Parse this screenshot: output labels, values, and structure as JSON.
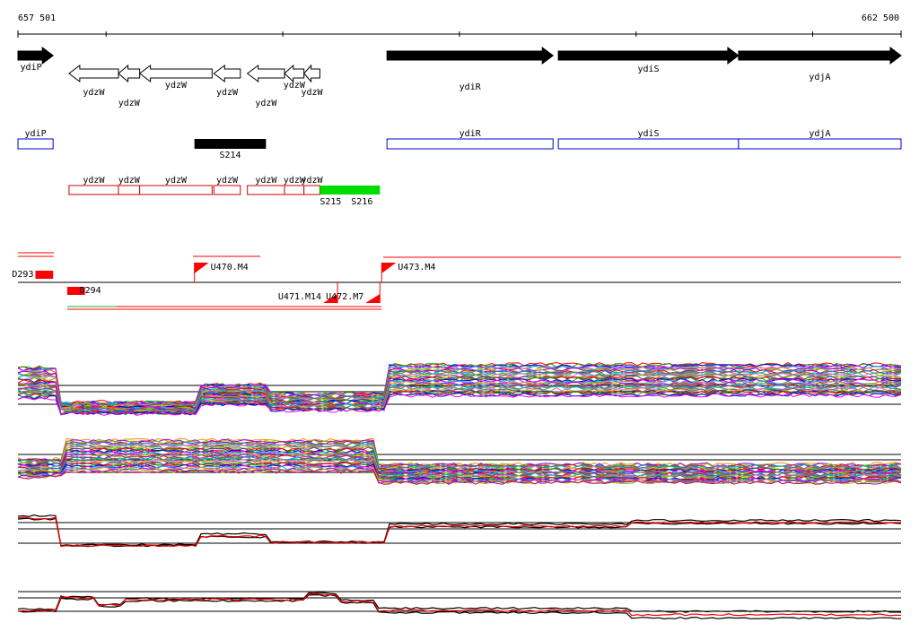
{
  "coordinates": {
    "start_label": "657 501",
    "end_label": "662 500",
    "start": 657501,
    "end": 662500,
    "ticks": [
      658000,
      659000,
      660000,
      661000,
      662000
    ]
  },
  "colors": {
    "gene_fill": "#000000",
    "gene_outline": "#000000",
    "operon_blue": "#0000cc",
    "operon_red": "#cc0000",
    "srna_black": "#000000",
    "srna_green": "#00dd00",
    "tss_red": "#ff0000",
    "baseline": "#000000"
  },
  "genes": [
    {
      "name": "ydiP",
      "start": 657501,
      "end": 657700,
      "strand": "+",
      "filled": true
    },
    {
      "name": "ydzW",
      "start": 657790,
      "end": 658070,
      "strand": "-",
      "filled": false
    },
    {
      "name": "ydzW",
      "start": 658070,
      "end": 658190,
      "strand": "-",
      "filled": false
    },
    {
      "name": "ydzW",
      "start": 658190,
      "end": 658600,
      "strand": "-",
      "filled": false
    },
    {
      "name": "ydzW",
      "start": 658610,
      "end": 658760,
      "strand": "-",
      "filled": false
    },
    {
      "name": "ydzW",
      "start": 658800,
      "end": 659010,
      "strand": "-",
      "filled": false
    },
    {
      "name": "ydzW",
      "start": 659010,
      "end": 659120,
      "strand": "-",
      "filled": false
    },
    {
      "name": "ydzW",
      "start": 659120,
      "end": 659210,
      "strand": "-",
      "filled": false
    },
    {
      "name": "ydiR",
      "start": 659590,
      "end": 660530,
      "strand": "+",
      "filled": true
    },
    {
      "name": "ydiS",
      "start": 660560,
      "end": 661580,
      "strand": "+",
      "filled": true
    },
    {
      "name": "ydjA",
      "start": 661580,
      "end": 662500,
      "strand": "+",
      "filled": true
    }
  ],
  "operons_blue": [
    {
      "name": "ydiP",
      "start": 657501,
      "end": 657700
    },
    {
      "name": "ydiR",
      "start": 659590,
      "end": 660530
    },
    {
      "name": "ydiS",
      "start": 660560,
      "end": 661580
    },
    {
      "name": "ydjA",
      "start": 661580,
      "end": 662500
    }
  ],
  "operons_red": [
    {
      "name": "ydzW",
      "start": 657790,
      "end": 658070
    },
    {
      "name": "ydzW",
      "start": 658070,
      "end": 658190
    },
    {
      "name": "ydzW",
      "start": 658190,
      "end": 658600
    },
    {
      "name": "ydzW",
      "start": 658610,
      "end": 658760
    },
    {
      "name": "ydzW",
      "start": 658800,
      "end": 659010
    },
    {
      "name": "ydzW",
      "start": 659010,
      "end": 659120
    },
    {
      "name": "ydzW",
      "start": 659120,
      "end": 659210
    }
  ],
  "srnas": [
    {
      "name": "S214",
      "start": 658500,
      "end": 658905,
      "color": "#000000"
    },
    {
      "name": "S215",
      "start": 659210,
      "end": 659550,
      "color": "#00dd00"
    },
    {
      "name": "S216",
      "start": 659550,
      "end": 659550,
      "color": "#00dd00"
    }
  ],
  "segments": [
    {
      "name": "D293",
      "start": 657600,
      "end": 657700
    },
    {
      "name": "D294",
      "start": 657780,
      "end": 657880
    }
  ],
  "tss": [
    {
      "name": "U470.M4",
      "pos": 658500,
      "strand": "+"
    },
    {
      "name": "U473.M4",
      "pos": 659560,
      "strand": "+"
    },
    {
      "name": "U471.M14",
      "pos": 659310,
      "strand": "-"
    },
    {
      "name": "U472.M7",
      "pos": 659550,
      "strand": "-"
    }
  ],
  "tracks": [
    {
      "name": "tiling-array-forward-multi",
      "kind": "multi"
    },
    {
      "name": "tiling-array-reverse-multi",
      "kind": "multi"
    },
    {
      "name": "tiling-array-forward-summary",
      "kind": "pair"
    },
    {
      "name": "tiling-array-reverse-summary",
      "kind": "pair"
    }
  ]
}
